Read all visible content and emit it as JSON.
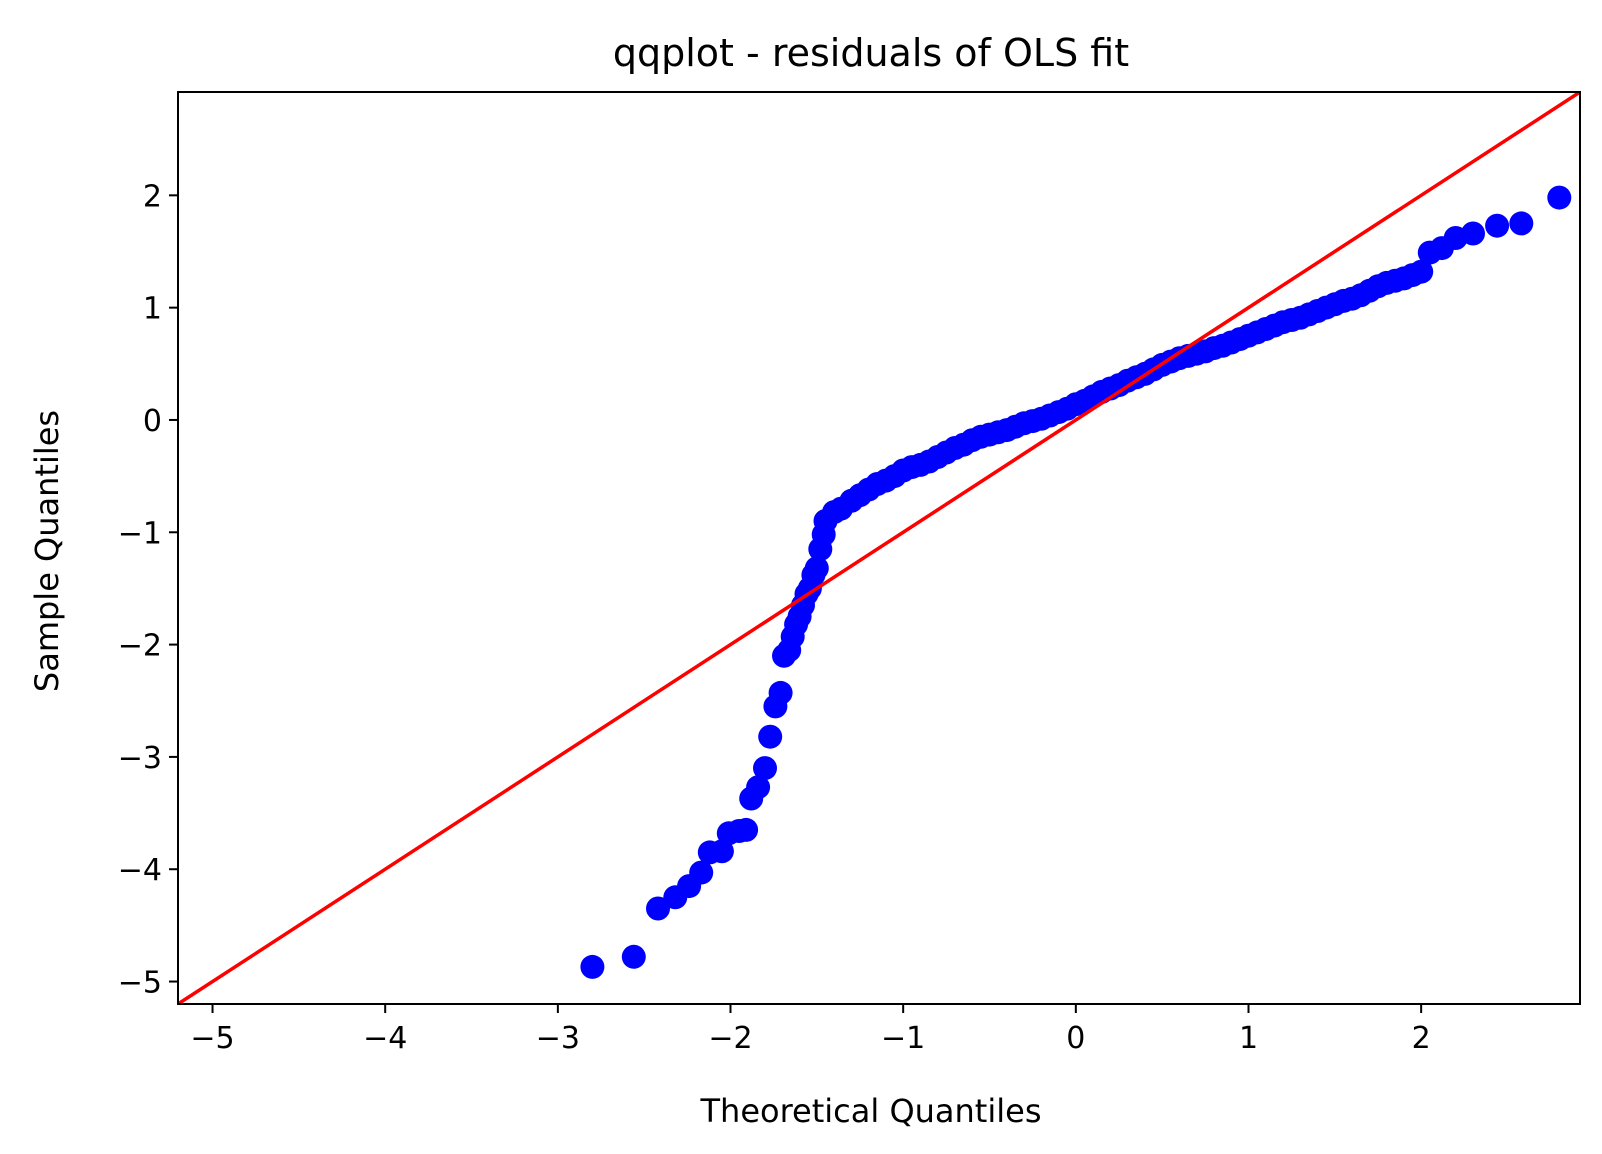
{
  "chart_data": {
    "type": "scatter",
    "title": "qqplot - residuals of OLS fit",
    "xlabel": "Theoretical Quantiles",
    "ylabel": "Sample Quantiles",
    "xlim": [
      -5.2,
      2.92
    ],
    "ylim": [
      -5.2,
      2.92
    ],
    "grid": false,
    "x_ticks": [
      -5,
      -4,
      -3,
      -2,
      -1,
      0,
      1,
      2
    ],
    "y_ticks": [
      -5,
      -4,
      -3,
      -2,
      -1,
      0,
      1,
      2
    ],
    "x_tick_labels": [
      "−5",
      "−4",
      "−3",
      "−2",
      "−1",
      "0",
      "1",
      "2"
    ],
    "y_tick_labels": [
      "−5",
      "−4",
      "−3",
      "−2",
      "−1",
      "0",
      "1",
      "2"
    ],
    "colors": {
      "points": "#0000ff",
      "reference_line": "#ff0000",
      "axes": "#000000"
    },
    "reference_line": {
      "slope": 1,
      "intercept": 0
    },
    "points": [
      [
        -2.8,
        -4.87
      ],
      [
        -2.56,
        -4.78
      ],
      [
        -2.42,
        -4.35
      ],
      [
        -2.32,
        -4.25
      ],
      [
        -2.24,
        -4.15
      ],
      [
        -2.17,
        -4.03
      ],
      [
        -2.12,
        -3.85
      ],
      [
        -2.05,
        -3.84
      ],
      [
        -2.01,
        -3.68
      ],
      [
        -1.95,
        -3.66
      ],
      [
        -1.91,
        -3.65
      ],
      [
        -1.88,
        -3.37
      ],
      [
        -1.84,
        -3.27
      ],
      [
        -1.8,
        -3.1
      ],
      [
        -1.77,
        -2.82
      ],
      [
        -1.74,
        -2.55
      ],
      [
        -1.71,
        -2.43
      ],
      [
        -1.69,
        -2.1
      ],
      [
        -1.66,
        -2.05
      ],
      [
        -1.64,
        -1.93
      ],
      [
        -1.62,
        -1.82
      ],
      [
        -1.6,
        -1.75
      ],
      [
        -1.58,
        -1.65
      ],
      [
        -1.56,
        -1.55
      ],
      [
        -1.54,
        -1.5
      ],
      [
        -1.52,
        -1.38
      ],
      [
        -1.5,
        -1.32
      ],
      [
        -1.48,
        -1.15
      ],
      [
        -1.46,
        -1.02
      ],
      [
        -1.45,
        -0.9
      ],
      [
        -1.4,
        -0.82
      ],
      [
        -1.36,
        -0.79
      ],
      [
        -1.3,
        -0.72
      ],
      [
        -1.25,
        -0.67
      ],
      [
        -1.2,
        -0.62
      ],
      [
        -1.15,
        -0.57
      ],
      [
        -1.1,
        -0.54
      ],
      [
        -1.05,
        -0.5
      ],
      [
        -1.0,
        -0.45
      ],
      [
        -0.95,
        -0.42
      ],
      [
        -0.9,
        -0.4
      ],
      [
        -0.85,
        -0.37
      ],
      [
        -0.8,
        -0.33
      ],
      [
        -0.75,
        -0.29
      ],
      [
        -0.7,
        -0.25
      ],
      [
        -0.65,
        -0.22
      ],
      [
        -0.6,
        -0.18
      ],
      [
        -0.55,
        -0.15
      ],
      [
        -0.5,
        -0.13
      ],
      [
        -0.45,
        -0.11
      ],
      [
        -0.4,
        -0.09
      ],
      [
        -0.35,
        -0.06
      ],
      [
        -0.3,
        -0.03
      ],
      [
        -0.25,
        -0.01
      ],
      [
        -0.2,
        0.01
      ],
      [
        -0.15,
        0.04
      ],
      [
        -0.1,
        0.07
      ],
      [
        -0.05,
        0.1
      ],
      [
        0.0,
        0.14
      ],
      [
        0.05,
        0.17
      ],
      [
        0.1,
        0.21
      ],
      [
        0.15,
        0.25
      ],
      [
        0.2,
        0.28
      ],
      [
        0.25,
        0.31
      ],
      [
        0.3,
        0.35
      ],
      [
        0.35,
        0.38
      ],
      [
        0.4,
        0.41
      ],
      [
        0.45,
        0.45
      ],
      [
        0.5,
        0.49
      ],
      [
        0.55,
        0.52
      ],
      [
        0.6,
        0.55
      ],
      [
        0.65,
        0.57
      ],
      [
        0.7,
        0.59
      ],
      [
        0.75,
        0.61
      ],
      [
        0.8,
        0.64
      ],
      [
        0.85,
        0.66
      ],
      [
        0.9,
        0.69
      ],
      [
        0.95,
        0.72
      ],
      [
        1.0,
        0.75
      ],
      [
        1.05,
        0.78
      ],
      [
        1.1,
        0.81
      ],
      [
        1.15,
        0.84
      ],
      [
        1.2,
        0.87
      ],
      [
        1.25,
        0.89
      ],
      [
        1.3,
        0.91
      ],
      [
        1.35,
        0.94
      ],
      [
        1.4,
        0.97
      ],
      [
        1.45,
        1.0
      ],
      [
        1.5,
        1.03
      ],
      [
        1.55,
        1.06
      ],
      [
        1.6,
        1.08
      ],
      [
        1.65,
        1.11
      ],
      [
        1.7,
        1.15
      ],
      [
        1.75,
        1.19
      ],
      [
        1.8,
        1.22
      ],
      [
        1.85,
        1.24
      ],
      [
        1.9,
        1.26
      ],
      [
        1.95,
        1.29
      ],
      [
        2.0,
        1.32
      ],
      [
        2.05,
        1.49
      ],
      [
        2.12,
        1.53
      ],
      [
        2.2,
        1.62
      ],
      [
        2.3,
        1.66
      ],
      [
        2.44,
        1.73
      ],
      [
        2.58,
        1.75
      ],
      [
        2.8,
        1.98
      ]
    ]
  }
}
